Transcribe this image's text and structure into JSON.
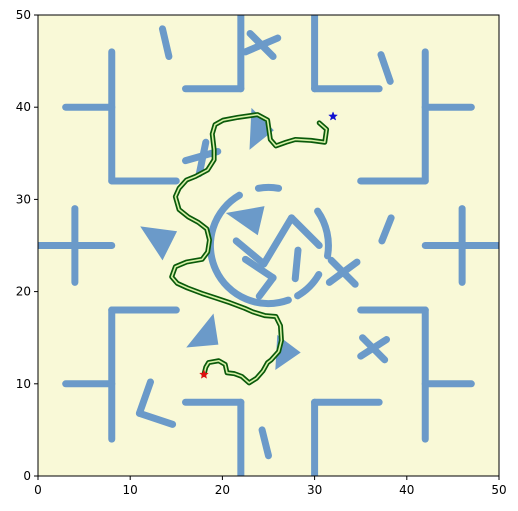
{
  "chart_data": {
    "type": "scatter",
    "title": "",
    "xlabel": "",
    "ylabel": "",
    "xlim": [
      0,
      50
    ],
    "ylim": [
      0,
      50
    ],
    "x_ticks": [
      0,
      10,
      20,
      30,
      40,
      50
    ],
    "y_ticks": [
      0,
      10,
      20,
      30,
      40,
      50
    ],
    "x_tick_labels": [
      "0",
      "10",
      "20",
      "30",
      "40",
      "50"
    ],
    "y_tick_labels": [
      "0",
      "10",
      "20",
      "30",
      "40",
      "50"
    ],
    "grid": false,
    "legend": "none",
    "colors": {
      "background": "#f9f9d7",
      "obstacle": "#6b9ac9",
      "path_outer": "#0a5a0a",
      "path_inner": "#d9f2a8",
      "start_marker": "#e01010",
      "goal_marker": "#1010d0"
    },
    "obstacles": {
      "segments": [
        [
          [
            8,
            4
          ],
          [
            8,
            18
          ]
        ],
        [
          [
            8,
            18
          ],
          [
            15,
            18
          ]
        ],
        [
          [
            3,
            10
          ],
          [
            8,
            10
          ]
        ],
        [
          [
            16,
            8
          ],
          [
            22,
            8
          ]
        ],
        [
          [
            22,
            8
          ],
          [
            22,
            0
          ]
        ],
        [
          [
            30,
            0
          ],
          [
            30,
            8
          ]
        ],
        [
          [
            30,
            8
          ],
          [
            37,
            8
          ]
        ],
        [
          [
            35,
            18
          ],
          [
            42,
            18
          ]
        ],
        [
          [
            42,
            18
          ],
          [
            42,
            4
          ]
        ],
        [
          [
            42,
            10
          ],
          [
            47,
            10
          ]
        ],
        [
          [
            8,
            46
          ],
          [
            8,
            32
          ]
        ],
        [
          [
            8,
            32
          ],
          [
            15,
            32
          ]
        ],
        [
          [
            3,
            40
          ],
          [
            8,
            40
          ]
        ],
        [
          [
            16,
            42
          ],
          [
            22,
            42
          ]
        ],
        [
          [
            22,
            42
          ],
          [
            22,
            50
          ]
        ],
        [
          [
            30,
            50
          ],
          [
            30,
            42
          ]
        ],
        [
          [
            30,
            42
          ],
          [
            37,
            42
          ]
        ],
        [
          [
            35,
            32
          ],
          [
            42,
            32
          ]
        ],
        [
          [
            42,
            32
          ],
          [
            42,
            46
          ]
        ],
        [
          [
            42,
            40
          ],
          [
            47,
            40
          ]
        ],
        [
          [
            0,
            25
          ],
          [
            8,
            25
          ]
        ],
        [
          [
            4,
            21
          ],
          [
            4,
            29
          ]
        ],
        [
          [
            42,
            25
          ],
          [
            50,
            25
          ]
        ],
        [
          [
            46,
            21
          ],
          [
            46,
            29
          ]
        ],
        [
          [
            23,
            48
          ],
          [
            25.5,
            45.5
          ]
        ],
        [
          [
            22.5,
            46
          ],
          [
            26,
            47.5
          ]
        ],
        [
          [
            13.5,
            48.5
          ],
          [
            14.2,
            45.5
          ]
        ],
        [
          [
            37.2,
            45.7
          ],
          [
            38.2,
            42.8
          ]
        ],
        [
          [
            38.3,
            28
          ],
          [
            37.3,
            25.5
          ]
        ],
        [
          [
            16,
            34.2
          ],
          [
            19.5,
            35.2
          ]
        ],
        [
          [
            17.5,
            32.8
          ],
          [
            18.2,
            36.2
          ]
        ],
        [
          [
            31.8,
            23.4
          ],
          [
            34.4,
            20.8
          ]
        ],
        [
          [
            31.6,
            21
          ],
          [
            34.6,
            23.2
          ]
        ],
        [
          [
            35.2,
            15
          ],
          [
            37.6,
            12.6
          ]
        ],
        [
          [
            35,
            13
          ],
          [
            37.8,
            14.8
          ]
        ],
        [
          [
            12.2,
            10.2
          ],
          [
            11,
            6.8
          ]
        ],
        [
          [
            11,
            6.8
          ],
          [
            14.6,
            5.6
          ]
        ],
        [
          [
            24.3,
            5
          ],
          [
            25,
            2.2
          ]
        ],
        [
          [
            21.5,
            25.5
          ],
          [
            24.5,
            23
          ]
        ],
        [
          [
            24.5,
            23
          ],
          [
            27.5,
            28
          ]
        ],
        [
          [
            27.5,
            28
          ],
          [
            30.5,
            25
          ]
        ],
        [
          [
            22.5,
            23.5
          ],
          [
            25.5,
            21.5
          ]
        ],
        [
          [
            25.5,
            21.5
          ],
          [
            24,
            19.5
          ]
        ],
        [
          [
            28.2,
            24.5
          ],
          [
            27.9,
            21.4
          ]
        ]
      ],
      "arcs": [
        {
          "center": [
            25,
            25
          ],
          "radius": 6.3,
          "start_deg": 120,
          "end_deg": 290
        },
        {
          "center": [
            25,
            25
          ],
          "radius": 6.3,
          "start_deg": 300,
          "end_deg": 330
        },
        {
          "center": [
            25,
            25
          ],
          "radius": 6.5,
          "start_deg": 350,
          "end_deg": 395
        },
        {
          "center": [
            25,
            25
          ],
          "radius": 6.3,
          "start_deg": 80,
          "end_deg": 100
        }
      ],
      "triangles": [
        [
          [
            23,
            35.5
          ],
          [
            25.5,
            37.5
          ],
          [
            23.2,
            39.8
          ]
        ],
        [
          [
            11.2,
            27
          ],
          [
            13.5,
            23.5
          ],
          [
            15,
            26.5
          ]
        ],
        [
          [
            20.5,
            28.5
          ],
          [
            23.8,
            26.2
          ],
          [
            24.5,
            29.2
          ]
        ],
        [
          [
            19,
            17.5
          ],
          [
            16.2,
            14
          ],
          [
            19.5,
            14.3
          ]
        ],
        [
          [
            26,
            15.2
          ],
          [
            28.4,
            13.4
          ],
          [
            25.8,
            11.6
          ]
        ]
      ]
    },
    "series": [
      {
        "x": [
          18,
          18.2,
          18.5,
          19.6,
          20.3,
          20.5,
          21.3,
          22.1,
          22.9,
          23.7,
          24.4,
          24.9,
          25.3,
          26.1,
          26.4,
          26.3,
          25.8,
          24.6,
          23.3,
          22.4,
          20.8,
          19.3,
          17.8,
          16.2,
          15.1,
          14.5,
          14.9,
          16.1,
          17.8,
          18.4,
          18.6,
          18.3,
          17.4,
          16.3,
          15.3,
          14.9,
          15.3,
          16.1,
          17.1,
          18.4,
          19.1,
          19.1,
          18.9,
          19.2,
          20.1,
          21.7,
          23.8,
          24.9,
          25.2,
          25.8,
          26.9,
          27.9,
          29.6,
          31.1,
          31.3,
          30.5
        ],
        "y": [
          11,
          11.8,
          12.3,
          12.5,
          12.1,
          11.2,
          11.1,
          10.8,
          10.1,
          10.6,
          11.4,
          12.3,
          12.6,
          13.5,
          14.7,
          16.3,
          17.3,
          17.4,
          17.8,
          18.2,
          18.8,
          19.3,
          19.8,
          20.4,
          20.9,
          21.6,
          22.7,
          23.2,
          23.5,
          24.3,
          25.6,
          26.8,
          27.5,
          28.1,
          28.9,
          30.3,
          31.2,
          32.1,
          32.5,
          33.2,
          34.3,
          35.4,
          37.1,
          38.1,
          38.6,
          38.9,
          39.2,
          38.6,
          36.5,
          35.8,
          36.2,
          36.5,
          36.4,
          36.2,
          37.6,
          38.3
        ]
      }
    ],
    "markers": [
      {
        "x": 18,
        "y": 11
      },
      {
        "x": 32,
        "y": 39
      }
    ]
  }
}
